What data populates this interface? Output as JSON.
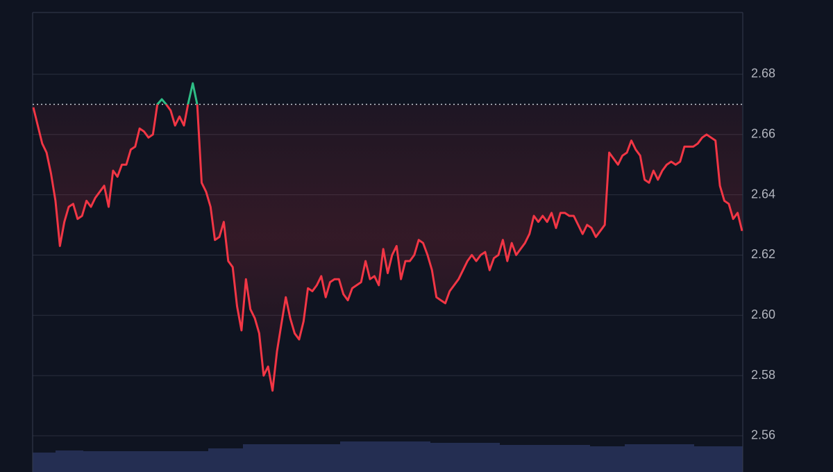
{
  "chart_data": {
    "type": "line",
    "values": [
      2.669,
      2.663,
      2.657,
      2.654,
      2.647,
      2.638,
      2.623,
      2.631,
      2.636,
      2.637,
      2.632,
      2.633,
      2.638,
      2.636,
      2.639,
      2.641,
      2.643,
      2.636,
      2.648,
      2.646,
      2.65,
      2.65,
      2.655,
      2.656,
      2.662,
      2.661,
      2.659,
      2.66,
      2.67,
      2.6717,
      2.67,
      2.668,
      2.663,
      2.666,
      2.663,
      2.6705,
      2.677,
      2.67,
      2.644,
      2.641,
      2.636,
      2.625,
      2.626,
      2.631,
      2.618,
      2.616,
      2.603,
      2.595,
      2.612,
      2.602,
      2.599,
      2.594,
      2.58,
      2.583,
      2.575,
      2.588,
      2.597,
      2.606,
      2.599,
      2.594,
      2.592,
      2.598,
      2.609,
      2.608,
      2.61,
      2.613,
      2.606,
      2.611,
      2.612,
      2.612,
      2.607,
      2.605,
      2.609,
      2.61,
      2.611,
      2.618,
      2.612,
      2.613,
      2.61,
      2.622,
      2.614,
      2.62,
      2.623,
      2.612,
      2.618,
      2.618,
      2.62,
      2.625,
      2.624,
      2.62,
      2.615,
      2.606,
      2.605,
      2.604,
      2.608,
      2.61,
      2.612,
      2.615,
      2.618,
      2.62,
      2.618,
      2.62,
      2.621,
      2.615,
      2.619,
      2.62,
      2.625,
      2.618,
      2.624,
      2.62,
      2.622,
      2.624,
      2.627,
      2.633,
      2.631,
      2.633,
      2.631,
      2.634,
      2.629,
      2.634,
      2.634,
      2.633,
      2.633,
      2.63,
      2.627,
      2.63,
      2.629,
      2.626,
      2.628,
      2.63,
      2.654,
      2.652,
      2.65,
      2.653,
      2.654,
      2.658,
      2.655,
      2.653,
      2.645,
      2.644,
      2.648,
      2.645,
      2.648,
      2.65,
      2.651,
      2.65,
      2.651,
      2.656,
      2.656,
      2.656,
      2.657,
      2.659,
      2.66,
      2.659,
      2.658,
      2.643,
      2.638,
      2.637,
      2.632,
      2.634,
      2.628
    ],
    "baseline": 2.67,
    "up_color": "#2ebd85",
    "down_color": "#f23645",
    "ylim": [
      2.548,
      2.7005
    ],
    "yticks": [
      2.56,
      2.58,
      {
        "value": 2.6,
        "label": "2.60"
      },
      2.62,
      2.64,
      2.66,
      2.68
    ],
    "grid": true
  }
}
